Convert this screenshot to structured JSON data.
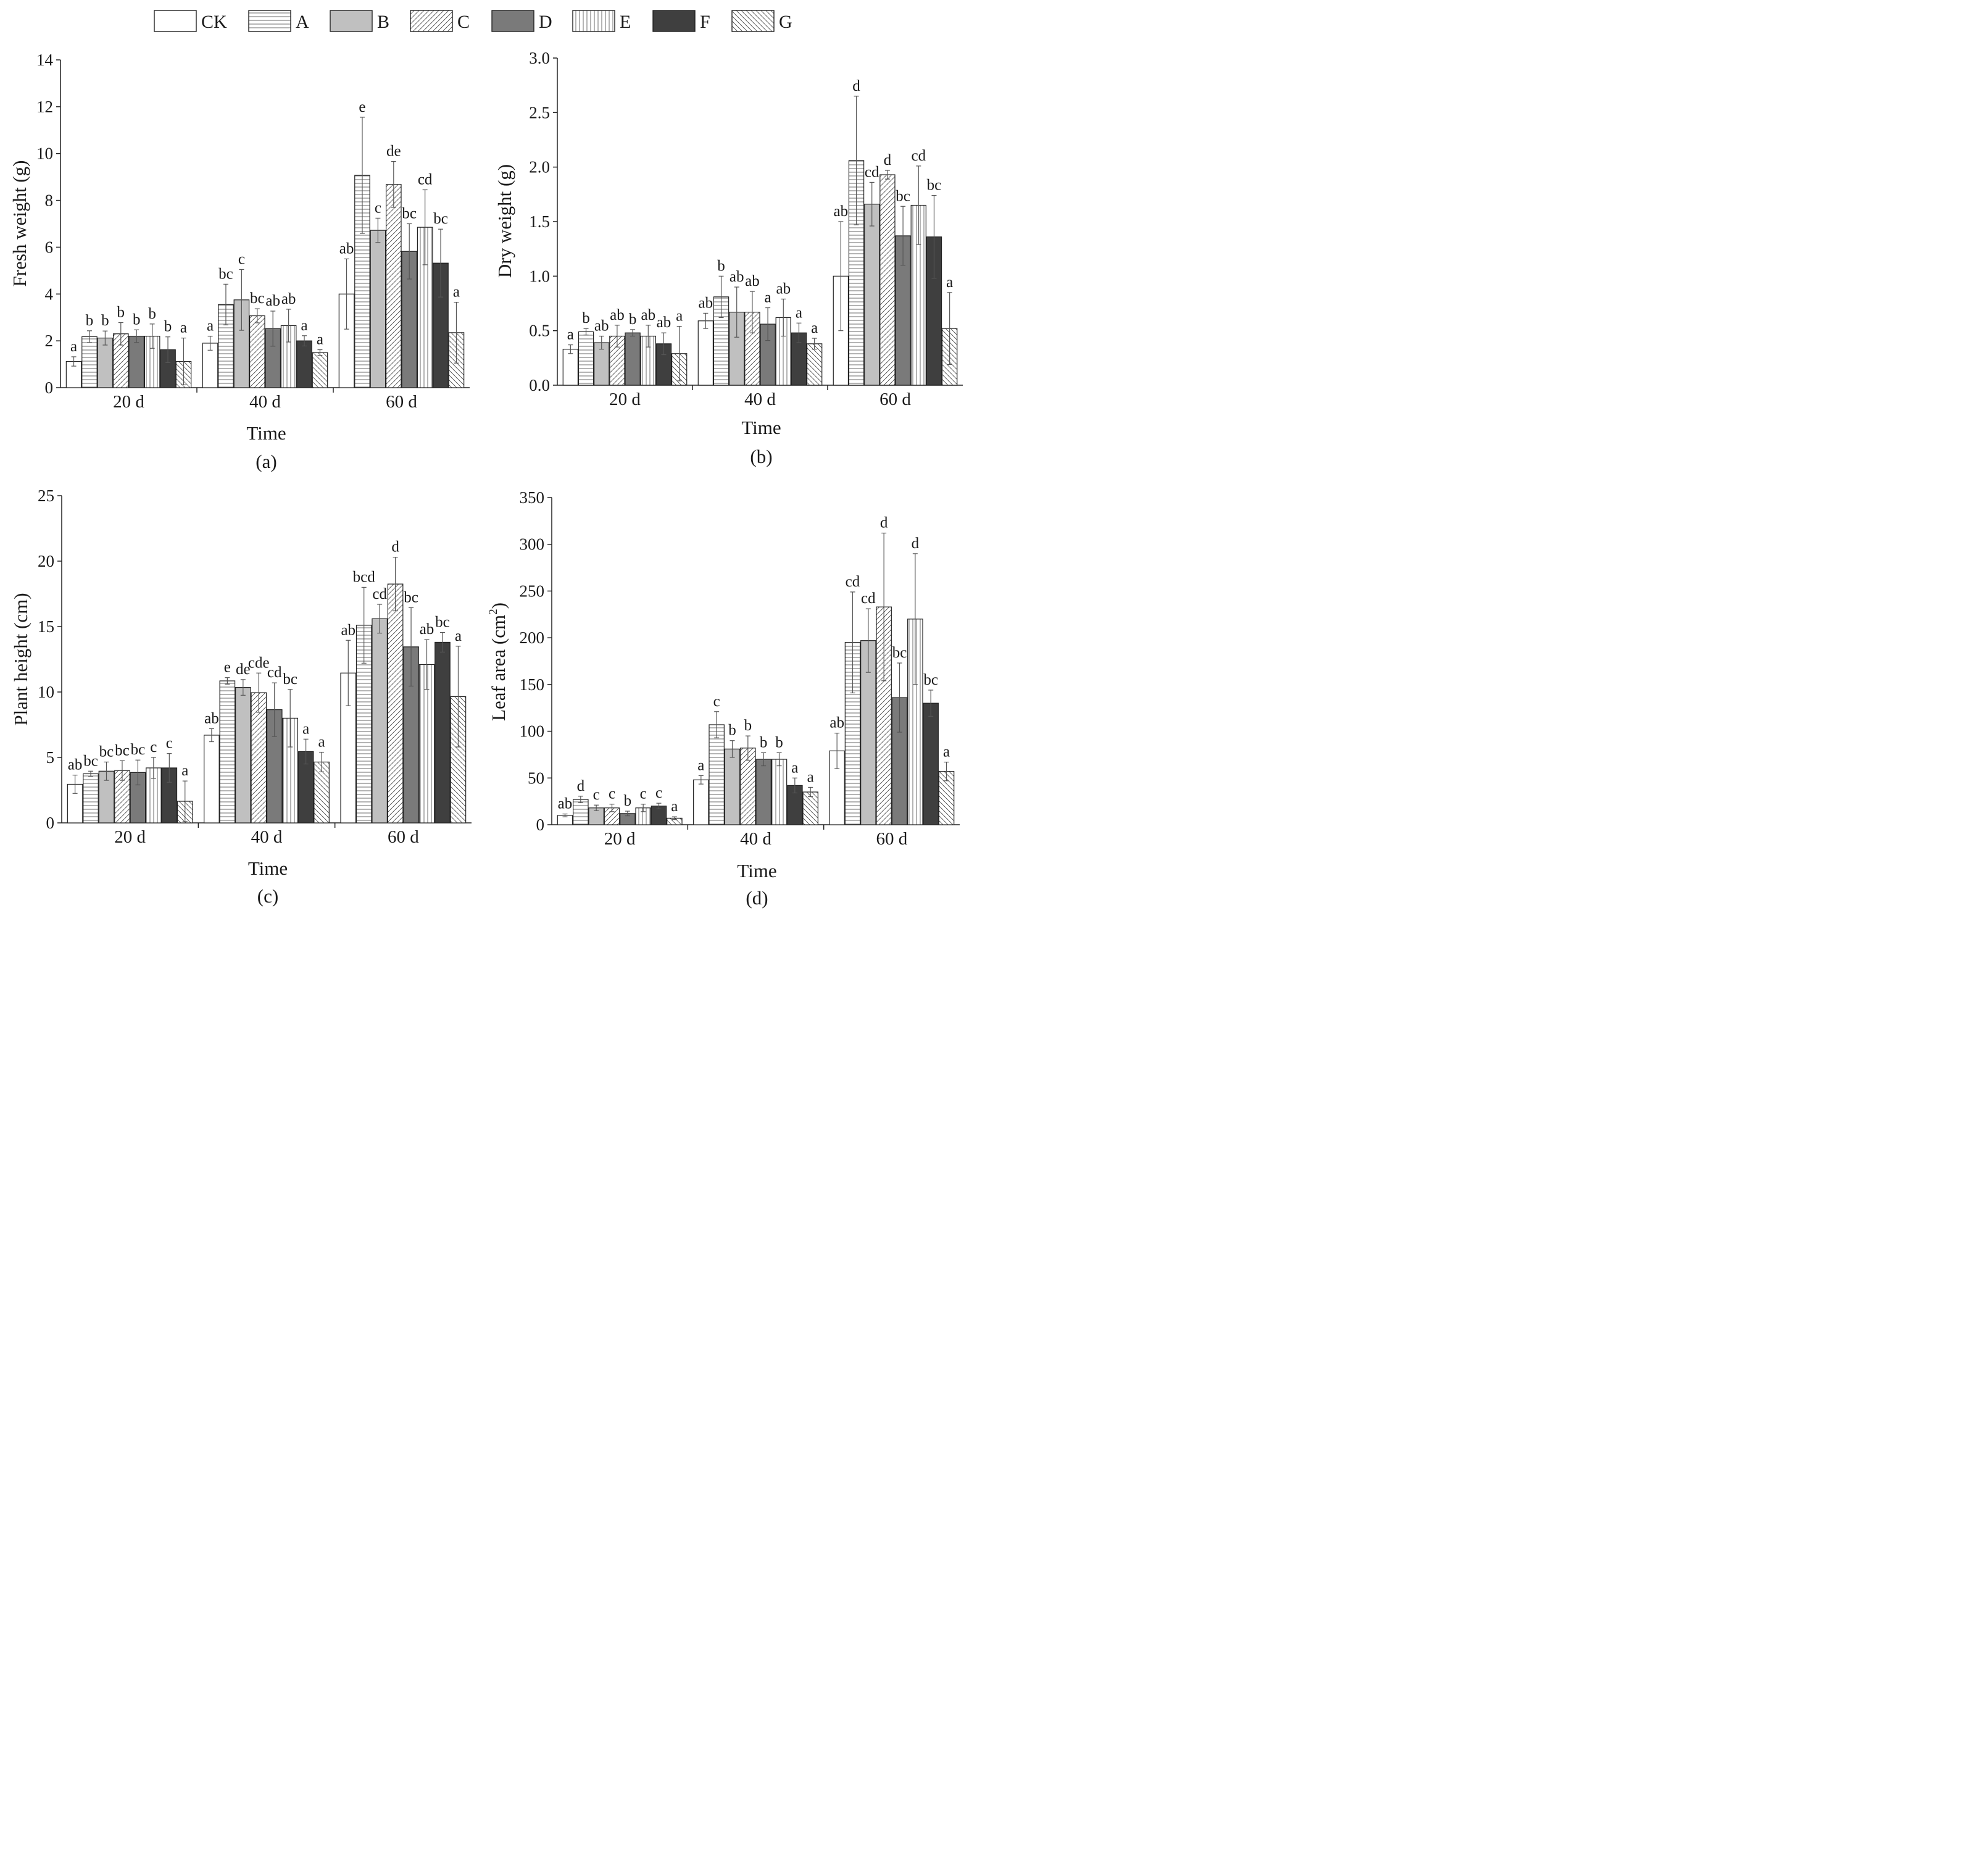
{
  "legend": [
    {
      "key": "CK",
      "label": "CK",
      "fill": "#ffffff",
      "pattern": "none"
    },
    {
      "key": "A",
      "label": "A",
      "fill": "#ffffff",
      "pattern": "hlines"
    },
    {
      "key": "B",
      "label": "B",
      "fill": "#c0c0c0",
      "pattern": "none"
    },
    {
      "key": "C",
      "label": "C",
      "fill": "#ffffff",
      "pattern": "diag-up"
    },
    {
      "key": "D",
      "label": "D",
      "fill": "#7a7a7a",
      "pattern": "none"
    },
    {
      "key": "E",
      "label": "E",
      "fill": "#ffffff",
      "pattern": "vlines"
    },
    {
      "key": "F",
      "label": "F",
      "fill": "#3f3f3f",
      "pattern": "none"
    },
    {
      "key": "G",
      "label": "G",
      "fill": "#ffffff",
      "pattern": "diag-down"
    }
  ],
  "chart_data": [
    {
      "id": "a",
      "type": "bar",
      "panel_label": "(a)",
      "xlabel": "Time",
      "ylabel": "Fresh weight (g)",
      "ylabel_sup": "",
      "ylim": [
        0,
        14
      ],
      "yticks": [
        0,
        2,
        4,
        6,
        8,
        10,
        12,
        14
      ],
      "ytick_labels": [
        "0",
        "2",
        "4",
        "6",
        "8",
        "10",
        "12",
        "14"
      ],
      "categories": [
        "20 d",
        "40 d",
        "60 d"
      ],
      "series": [
        {
          "name": "CK",
          "values": [
            1.12,
            1.9,
            4.0
          ],
          "errors": [
            0.2,
            0.3,
            1.5
          ],
          "letters": [
            "a",
            "a",
            "ab"
          ]
        },
        {
          "name": "A",
          "values": [
            2.18,
            3.55,
            9.07
          ],
          "errors": [
            0.25,
            0.87,
            2.48
          ],
          "letters": [
            "b",
            "bc",
            "e"
          ]
        },
        {
          "name": "B",
          "values": [
            2.12,
            3.75,
            6.72
          ],
          "errors": [
            0.3,
            1.3,
            0.52
          ],
          "letters": [
            "b",
            "c",
            "c"
          ]
        },
        {
          "name": "C",
          "values": [
            2.3,
            3.07,
            8.68
          ],
          "errors": [
            0.48,
            0.3,
            0.98
          ],
          "letters": [
            "b",
            "bc",
            "de"
          ]
        },
        {
          "name": "D",
          "values": [
            2.2,
            2.52,
            5.82
          ],
          "errors": [
            0.27,
            0.75,
            1.18
          ],
          "letters": [
            "b",
            "ab",
            "bc"
          ]
        },
        {
          "name": "E",
          "values": [
            2.2,
            2.65,
            6.85
          ],
          "errors": [
            0.52,
            0.7,
            1.6
          ],
          "letters": [
            "b",
            "ab",
            "cd"
          ]
        },
        {
          "name": "F",
          "values": [
            1.62,
            2.0,
            5.32
          ],
          "errors": [
            0.55,
            0.22,
            1.45
          ],
          "letters": [
            "b",
            "a",
            "bc"
          ]
        },
        {
          "name": "G",
          "values": [
            1.12,
            1.5,
            2.35
          ],
          "errors": [
            1.0,
            0.12,
            1.3
          ],
          "letters": [
            "a",
            "a",
            "a"
          ]
        }
      ]
    },
    {
      "id": "b",
      "type": "bar",
      "panel_label": "(b)",
      "xlabel": "Time",
      "ylabel": "Dry weight (g)",
      "ylabel_sup": "",
      "ylim": [
        0,
        3.0
      ],
      "yticks": [
        0,
        0.5,
        1.0,
        1.5,
        2.0,
        2.5,
        3.0
      ],
      "ytick_labels": [
        "0.0",
        "0.5",
        "1.0",
        "1.5",
        "2.0",
        "2.5",
        "3.0"
      ],
      "categories": [
        "20 d",
        "40 d",
        "60 d"
      ],
      "series": [
        {
          "name": "CK",
          "values": [
            0.33,
            0.59,
            1.0
          ],
          "errors": [
            0.04,
            0.07,
            0.5
          ],
          "letters": [
            "a",
            "ab",
            "ab"
          ]
        },
        {
          "name": "A",
          "values": [
            0.49,
            0.81,
            2.06
          ],
          "errors": [
            0.03,
            0.19,
            0.59
          ],
          "letters": [
            "b",
            "b",
            "d"
          ]
        },
        {
          "name": "B",
          "values": [
            0.39,
            0.67,
            1.66
          ],
          "errors": [
            0.06,
            0.23,
            0.2
          ],
          "letters": [
            "ab",
            "ab",
            "cd"
          ]
        },
        {
          "name": "C",
          "values": [
            0.45,
            0.67,
            1.93
          ],
          "errors": [
            0.1,
            0.19,
            0.04
          ],
          "letters": [
            "ab",
            "ab",
            "d"
          ]
        },
        {
          "name": "D",
          "values": [
            0.48,
            0.56,
            1.37
          ],
          "errors": [
            0.03,
            0.15,
            0.27
          ],
          "letters": [
            "b",
            "a",
            "bc"
          ]
        },
        {
          "name": "E",
          "values": [
            0.45,
            0.62,
            1.65
          ],
          "errors": [
            0.1,
            0.17,
            0.36
          ],
          "letters": [
            "ab",
            "ab",
            "cd"
          ]
        },
        {
          "name": "F",
          "values": [
            0.38,
            0.48,
            1.36
          ],
          "errors": [
            0.1,
            0.09,
            0.38
          ],
          "letters": [
            "ab",
            "a",
            "bc"
          ]
        },
        {
          "name": "G",
          "values": [
            0.29,
            0.38,
            0.52
          ],
          "errors": [
            0.25,
            0.05,
            0.33
          ],
          "letters": [
            "a",
            "a",
            "a"
          ]
        }
      ]
    },
    {
      "id": "c",
      "type": "bar",
      "panel_label": "(c)",
      "xlabel": "Time",
      "ylabel": "Plant height (cm)",
      "ylabel_sup": "",
      "ylim": [
        0,
        25
      ],
      "yticks": [
        0,
        5,
        10,
        15,
        20,
        25
      ],
      "ytick_labels": [
        "0",
        "5",
        "10",
        "15",
        "20",
        "25"
      ],
      "categories": [
        "20 d",
        "40 d",
        "60 d"
      ],
      "series": [
        {
          "name": "CK",
          "values": [
            2.95,
            6.7,
            11.45
          ],
          "errors": [
            0.7,
            0.5,
            2.5
          ],
          "letters": [
            "ab",
            "ab",
            "ab"
          ]
        },
        {
          "name": "A",
          "values": [
            3.75,
            10.85,
            15.1
          ],
          "errors": [
            0.2,
            0.25,
            2.9
          ],
          "letters": [
            "bc",
            "e",
            "bcd"
          ]
        },
        {
          "name": "B",
          "values": [
            3.95,
            10.35,
            15.6
          ],
          "errors": [
            0.7,
            0.6,
            1.1
          ],
          "letters": [
            "bc",
            "de",
            "cd"
          ]
        },
        {
          "name": "C",
          "values": [
            4.0,
            9.95,
            18.25
          ],
          "errors": [
            0.75,
            1.5,
            2.05
          ],
          "letters": [
            "bc",
            "cde",
            "d"
          ]
        },
        {
          "name": "D",
          "values": [
            3.85,
            8.65,
            13.45
          ],
          "errors": [
            0.95,
            2.05,
            3.0
          ],
          "letters": [
            "bc",
            "cd",
            "bc"
          ]
        },
        {
          "name": "E",
          "values": [
            4.2,
            8.0,
            12.1
          ],
          "errors": [
            0.8,
            2.2,
            1.9
          ],
          "letters": [
            "c",
            "bc",
            "ab"
          ]
        },
        {
          "name": "F",
          "values": [
            4.2,
            5.45,
            13.8
          ],
          "errors": [
            1.1,
            0.95,
            0.75
          ],
          "letters": [
            "c",
            "a",
            "bc"
          ]
        },
        {
          "name": "G",
          "values": [
            1.65,
            4.65,
            9.65
          ],
          "errors": [
            1.55,
            0.75,
            3.85
          ],
          "letters": [
            "a",
            "a",
            "a"
          ]
        }
      ]
    },
    {
      "id": "d",
      "type": "bar",
      "panel_label": "(d)",
      "xlabel": "Time",
      "ylabel": "Leaf area (cm",
      "ylabel_sup": "2",
      "ylabel_tail": ")",
      "ylim": [
        0,
        350
      ],
      "yticks": [
        0,
        50,
        100,
        150,
        200,
        250,
        300,
        350
      ],
      "ytick_labels": [
        "0",
        "50",
        "100",
        "150",
        "200",
        "250",
        "300",
        "350"
      ],
      "categories": [
        "20 d",
        "40 d",
        "60 d"
      ],
      "series": [
        {
          "name": "CK",
          "values": [
            10,
            48,
            79
          ],
          "errors": [
            1.5,
            4.5,
            19
          ],
          "letters": [
            "ab",
            "a",
            "ab"
          ]
        },
        {
          "name": "A",
          "values": [
            27,
            107,
            195
          ],
          "errors": [
            3.5,
            14,
            54
          ],
          "letters": [
            "d",
            "c",
            "cd"
          ]
        },
        {
          "name": "B",
          "values": [
            18,
            81,
            197
          ],
          "errors": [
            3,
            9,
            34
          ],
          "letters": [
            "c",
            "b",
            "cd"
          ]
        },
        {
          "name": "C",
          "values": [
            18,
            82,
            233
          ],
          "errors": [
            4,
            13,
            79
          ],
          "letters": [
            "c",
            "b",
            "d"
          ]
        },
        {
          "name": "D",
          "values": [
            12,
            70,
            136
          ],
          "errors": [
            2.5,
            7,
            37
          ],
          "letters": [
            "b",
            "b",
            "bc"
          ]
        },
        {
          "name": "E",
          "values": [
            18,
            70,
            220
          ],
          "errors": [
            4,
            7,
            70
          ],
          "letters": [
            "c",
            "b",
            "d"
          ]
        },
        {
          "name": "F",
          "values": [
            20,
            42,
            130
          ],
          "errors": [
            3,
            8,
            14
          ],
          "letters": [
            "c",
            "a",
            "bc"
          ]
        },
        {
          "name": "G",
          "values": [
            7,
            35,
            57
          ],
          "errors": [
            1.5,
            5,
            10
          ],
          "letters": [
            "a",
            "a",
            "a"
          ]
        }
      ]
    }
  ]
}
